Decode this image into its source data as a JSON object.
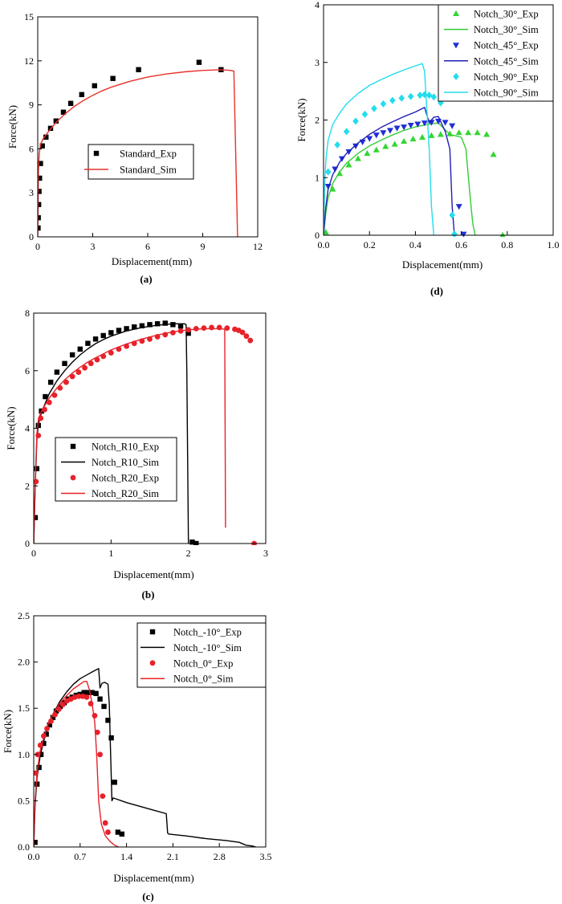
{
  "chart_data": [
    {
      "panel": "(a)",
      "type": "line",
      "xlabel": "Displacement(mm)",
      "ylabel": "Force(kN)",
      "xlim": [
        0,
        12
      ],
      "ylim": [
        0,
        15
      ],
      "xticks": [
        0,
        3,
        6,
        9,
        12
      ],
      "yticks": [
        0,
        3,
        6,
        9,
        12,
        15
      ],
      "xtick_labels": [
        "0",
        "3",
        "6",
        "9",
        "12"
      ],
      "ytick_labels": [
        "0",
        "3",
        "6",
        "9",
        "12",
        "15"
      ],
      "legend_position": "middle-right",
      "series": [
        {
          "name": "Standard_Exp",
          "kind": "scatter",
          "marker": "square",
          "color": "#000000",
          "x": [
            0.02,
            0.03,
            0.05,
            0.07,
            0.1,
            0.15,
            0.25,
            0.45,
            0.7,
            1.0,
            1.4,
            1.8,
            2.4,
            3.1,
            4.1,
            5.5,
            8.8,
            10.0
          ],
          "y": [
            0.6,
            1.3,
            2.2,
            3.1,
            4.0,
            5.0,
            6.2,
            6.8,
            7.4,
            7.9,
            8.5,
            9.1,
            9.7,
            10.3,
            10.8,
            11.4,
            11.9,
            11.4
          ]
        },
        {
          "name": "Standard_Sim",
          "kind": "line",
          "color": "#e8312a",
          "x": [
            0,
            0.04,
            0.08,
            0.15,
            0.3,
            0.6,
            1.0,
            1.5,
            2.0,
            2.5,
            3.0,
            3.5,
            4.0,
            5.0,
            6.0,
            7.0,
            8.0,
            9.0,
            10.0,
            10.5,
            10.7,
            10.9
          ],
          "y": [
            0,
            4.5,
            5.6,
            6.3,
            6.7,
            7.2,
            7.8,
            8.4,
            8.9,
            9.3,
            9.65,
            9.95,
            10.2,
            10.6,
            10.9,
            11.1,
            11.25,
            11.35,
            11.4,
            11.35,
            11.3,
            0
          ]
        }
      ]
    },
    {
      "panel": "(d)",
      "type": "line",
      "xlabel": "Displacement(mm)",
      "ylabel": "Force(kN)",
      "xlim": [
        0,
        1.0
      ],
      "ylim": [
        0,
        4
      ],
      "xticks": [
        0,
        0.2,
        0.4,
        0.6,
        0.8,
        1.0
      ],
      "yticks": [
        0,
        1,
        2,
        3,
        4
      ],
      "xtick_labels": [
        "0.0",
        "0.2",
        "0.4",
        "0.6",
        "0.8",
        "1.0"
      ],
      "ytick_labels": [
        "0",
        "1",
        "2",
        "3",
        "4"
      ],
      "legend_position": "top-right",
      "series": [
        {
          "name": "Notch_30°_Exp",
          "kind": "scatter",
          "marker": "triangle-up",
          "color": "#33d633",
          "x": [
            0.01,
            0.04,
            0.07,
            0.11,
            0.15,
            0.19,
            0.23,
            0.27,
            0.31,
            0.35,
            0.39,
            0.43,
            0.47,
            0.51,
            0.55,
            0.59,
            0.63,
            0.67,
            0.71,
            0.74,
            0.78
          ],
          "y": [
            0.05,
            0.8,
            1.07,
            1.22,
            1.33,
            1.42,
            1.48,
            1.54,
            1.58,
            1.63,
            1.67,
            1.7,
            1.73,
            1.75,
            1.76,
            1.78,
            1.78,
            1.78,
            1.75,
            1.4,
            0.0
          ]
        },
        {
          "name": "Notch_30°_Sim",
          "kind": "line",
          "color": "#33cc33",
          "x": [
            0,
            0.01,
            0.02,
            0.04,
            0.07,
            0.1,
            0.15,
            0.2,
            0.25,
            0.3,
            0.35,
            0.4,
            0.45,
            0.5,
            0.55,
            0.6,
            0.62,
            0.64,
            0.65,
            0.66
          ],
          "y": [
            0,
            0.4,
            0.65,
            0.9,
            1.1,
            1.25,
            1.42,
            1.55,
            1.65,
            1.74,
            1.82,
            1.88,
            1.92,
            1.95,
            1.75,
            1.7,
            1.5,
            0.6,
            0.2,
            0
          ]
        },
        {
          "name": "Notch_45°_Exp",
          "kind": "scatter",
          "marker": "triangle-down",
          "color": "#1f2fd6",
          "x": [
            0.02,
            0.05,
            0.08,
            0.11,
            0.14,
            0.17,
            0.2,
            0.23,
            0.26,
            0.29,
            0.32,
            0.35,
            0.38,
            0.41,
            0.44,
            0.47,
            0.5,
            0.53,
            0.56,
            0.59,
            0.61
          ],
          "y": [
            0.85,
            1.15,
            1.33,
            1.45,
            1.55,
            1.62,
            1.68,
            1.74,
            1.78,
            1.82,
            1.86,
            1.88,
            1.91,
            1.93,
            1.95,
            1.96,
            1.98,
            1.96,
            1.9,
            0.5,
            0.02
          ]
        },
        {
          "name": "Notch_45°_Sim",
          "kind": "line",
          "color": "#1f1fb4",
          "x": [
            0,
            0.01,
            0.02,
            0.04,
            0.07,
            0.1,
            0.15,
            0.2,
            0.25,
            0.3,
            0.35,
            0.4,
            0.44,
            0.46,
            0.48,
            0.5,
            0.53,
            0.55,
            0.56,
            0.57
          ],
          "y": [
            0,
            0.5,
            0.8,
            1.05,
            1.27,
            1.42,
            1.6,
            1.75,
            1.87,
            1.97,
            2.06,
            2.14,
            2.22,
            1.95,
            2.05,
            2.06,
            1.8,
            1.5,
            0.5,
            0
          ]
        },
        {
          "name": "Notch_90°_Exp",
          "kind": "scatter",
          "marker": "diamond",
          "color": "#22ddee",
          "x": [
            0.02,
            0.06,
            0.1,
            0.14,
            0.18,
            0.22,
            0.26,
            0.3,
            0.34,
            0.38,
            0.42,
            0.44,
            0.46,
            0.48,
            0.51,
            0.56,
            0.57
          ],
          "y": [
            1.1,
            1.57,
            1.8,
            1.98,
            2.1,
            2.2,
            2.28,
            2.34,
            2.38,
            2.41,
            2.43,
            2.44,
            2.43,
            2.4,
            2.3,
            0.35,
            0.02
          ]
        },
        {
          "name": "Notch_90°_Sim",
          "kind": "line",
          "color": "#22ddee",
          "x": [
            0,
            0.005,
            0.01,
            0.02,
            0.04,
            0.07,
            0.1,
            0.15,
            0.2,
            0.25,
            0.3,
            0.35,
            0.4,
            0.43,
            0.44,
            0.46,
            0.47,
            0.48
          ],
          "y": [
            0,
            0.9,
            1.3,
            1.65,
            1.92,
            2.12,
            2.28,
            2.46,
            2.6,
            2.7,
            2.79,
            2.87,
            2.94,
            2.98,
            2.85,
            1.5,
            0.5,
            0
          ]
        }
      ]
    },
    {
      "panel": "(b)",
      "type": "line",
      "xlabel": "Displacement(mm)",
      "ylabel": "Force(kN)",
      "xlim": [
        0,
        3
      ],
      "ylim": [
        0,
        8
      ],
      "xticks": [
        0,
        1,
        2,
        3
      ],
      "yticks": [
        0,
        2,
        4,
        6,
        8
      ],
      "xtick_labels": [
        "0",
        "1",
        "2",
        "3"
      ],
      "ytick_labels": [
        "0",
        "2",
        "4",
        "6",
        "8"
      ],
      "legend_position": "bottom-left",
      "series": [
        {
          "name": "Notch_R10_Exp",
          "kind": "scatter",
          "marker": "square",
          "color": "#000000",
          "x": [
            0.02,
            0.04,
            0.06,
            0.1,
            0.15,
            0.22,
            0.3,
            0.4,
            0.5,
            0.6,
            0.7,
            0.8,
            0.9,
            1.0,
            1.1,
            1.2,
            1.3,
            1.4,
            1.5,
            1.6,
            1.7,
            1.8,
            1.9,
            2.0,
            2.05,
            2.1
          ],
          "y": [
            0.9,
            2.6,
            4.1,
            4.6,
            5.1,
            5.6,
            5.95,
            6.25,
            6.55,
            6.75,
            6.95,
            7.1,
            7.22,
            7.32,
            7.4,
            7.46,
            7.52,
            7.56,
            7.6,
            7.63,
            7.65,
            7.6,
            7.55,
            7.3,
            0.05,
            0.0
          ]
        },
        {
          "name": "Notch_R10_Sim",
          "kind": "line",
          "color": "#000000",
          "x": [
            0,
            0.02,
            0.04,
            0.06,
            0.1,
            0.2,
            0.3,
            0.4,
            0.5,
            0.6,
            0.7,
            0.8,
            0.9,
            1.0,
            1.2,
            1.4,
            1.6,
            1.8,
            1.95,
            1.97,
            1.98,
            1.99,
            2.0
          ],
          "y": [
            0,
            2.0,
            3.6,
            4.15,
            4.55,
            5.2,
            5.65,
            6.0,
            6.3,
            6.55,
            6.76,
            6.94,
            7.08,
            7.2,
            7.38,
            7.5,
            7.58,
            7.63,
            7.63,
            7.6,
            6.0,
            3.0,
            0
          ]
        },
        {
          "name": "Notch_R20_Exp",
          "kind": "scatter",
          "marker": "circle",
          "color": "#e8212a",
          "x": [
            0.03,
            0.06,
            0.09,
            0.14,
            0.2,
            0.27,
            0.34,
            0.42,
            0.5,
            0.58,
            0.66,
            0.74,
            0.82,
            0.9,
            1.0,
            1.1,
            1.2,
            1.3,
            1.4,
            1.5,
            1.6,
            1.7,
            1.8,
            1.9,
            2.0,
            2.1,
            2.2,
            2.3,
            2.4,
            2.5,
            2.6,
            2.65,
            2.7,
            2.75,
            2.8,
            2.85
          ],
          "y": [
            2.15,
            3.75,
            4.35,
            4.65,
            4.9,
            5.15,
            5.4,
            5.6,
            5.8,
            5.95,
            6.1,
            6.25,
            6.38,
            6.5,
            6.62,
            6.75,
            6.85,
            6.95,
            7.03,
            7.1,
            7.18,
            7.25,
            7.32,
            7.38,
            7.42,
            7.46,
            7.48,
            7.5,
            7.5,
            7.48,
            7.44,
            7.4,
            7.33,
            7.2,
            7.05,
            0.0
          ]
        },
        {
          "name": "Notch_R20_Sim",
          "kind": "line",
          "color": "#e8212a",
          "x": [
            0,
            0.02,
            0.04,
            0.06,
            0.1,
            0.2,
            0.3,
            0.4,
            0.5,
            0.6,
            0.7,
            0.8,
            1.0,
            1.2,
            1.4,
            1.6,
            1.8,
            2.0,
            2.2,
            2.4,
            2.47,
            2.48
          ],
          "y": [
            0,
            2.1,
            3.8,
            4.3,
            4.6,
            5.05,
            5.4,
            5.68,
            5.92,
            6.12,
            6.3,
            6.45,
            6.72,
            6.93,
            7.1,
            7.24,
            7.35,
            7.42,
            7.46,
            7.46,
            7.44,
            0.55
          ]
        }
      ]
    },
    {
      "panel": "(c)",
      "type": "line",
      "xlabel": "Displacement(mm)",
      "ylabel": "Force(kN)",
      "xlim": [
        0,
        3.5
      ],
      "ylim": [
        0,
        2.5
      ],
      "xticks": [
        0,
        0.7,
        1.4,
        2.1,
        2.8,
        3.5
      ],
      "yticks": [
        0,
        0.5,
        1.0,
        1.5,
        2.0,
        2.5
      ],
      "xtick_labels": [
        "0.0",
        "0.7",
        "1.4",
        "2.1",
        "2.8",
        "3.5"
      ],
      "ytick_labels": [
        "0.0",
        "0.5",
        "1.0",
        "1.5",
        "2.0",
        "2.5"
      ],
      "legend_position": "top-right",
      "series": [
        {
          "name": "Notch_-10°_Exp",
          "kind": "scatter",
          "marker": "square",
          "color": "#000000",
          "x": [
            0.02,
            0.05,
            0.08,
            0.11,
            0.15,
            0.19,
            0.24,
            0.29,
            0.34,
            0.4,
            0.46,
            0.52,
            0.58,
            0.64,
            0.7,
            0.76,
            0.82,
            0.88,
            0.94,
            1.0,
            1.06,
            1.12,
            1.17,
            1.22,
            1.27,
            1.33
          ],
          "y": [
            0.05,
            0.68,
            0.86,
            1.0,
            1.12,
            1.22,
            1.32,
            1.4,
            1.47,
            1.52,
            1.56,
            1.6,
            1.62,
            1.64,
            1.65,
            1.67,
            1.67,
            1.67,
            1.66,
            1.6,
            1.52,
            1.37,
            1.18,
            0.7,
            0.16,
            0.14
          ]
        },
        {
          "name": "Notch_-10°_Sim",
          "kind": "line",
          "color": "#000000",
          "x": [
            0,
            0.02,
            0.05,
            0.1,
            0.2,
            0.3,
            0.4,
            0.5,
            0.6,
            0.7,
            0.8,
            0.9,
            0.98,
            1.0,
            1.03,
            1.07,
            1.12,
            1.14,
            1.16,
            1.18,
            1.2,
            1.4,
            1.6,
            1.8,
            2.0,
            2.02,
            2.04,
            2.3,
            2.6,
            2.9,
            3.1,
            3.2,
            3.3,
            3.35
          ],
          "y": [
            0,
            0.45,
            0.75,
            1.0,
            1.28,
            1.45,
            1.58,
            1.68,
            1.76,
            1.82,
            1.86,
            1.9,
            1.93,
            1.72,
            1.77,
            1.78,
            1.76,
            1.55,
            1.0,
            0.5,
            0.53,
            0.48,
            0.44,
            0.4,
            0.36,
            0.15,
            0.14,
            0.12,
            0.09,
            0.07,
            0.05,
            0.02,
            0.01,
            0
          ]
        },
        {
          "name": "Notch_0°_Exp",
          "kind": "scatter",
          "marker": "circle",
          "color": "#e8212a",
          "x": [
            0.03,
            0.06,
            0.1,
            0.15,
            0.2,
            0.26,
            0.32,
            0.38,
            0.44,
            0.5,
            0.56,
            0.62,
            0.68,
            0.74,
            0.8,
            0.86,
            0.92,
            0.96,
            1.0,
            1.04,
            1.08,
            1.12
          ],
          "y": [
            0.8,
            1.0,
            1.1,
            1.2,
            1.28,
            1.36,
            1.43,
            1.49,
            1.54,
            1.58,
            1.6,
            1.62,
            1.63,
            1.63,
            1.62,
            1.55,
            1.42,
            1.24,
            1.0,
            0.55,
            0.26,
            0.16
          ]
        },
        {
          "name": "Notch_0°_Sim",
          "kind": "line",
          "color": "#e8212a",
          "x": [
            0,
            0.02,
            0.05,
            0.1,
            0.2,
            0.3,
            0.4,
            0.5,
            0.6,
            0.7,
            0.76,
            0.8,
            0.84,
            0.88,
            0.92,
            0.95,
            0.98,
            1.02,
            1.08,
            1.15,
            1.22,
            1.28
          ],
          "y": [
            0,
            0.5,
            0.8,
            1.05,
            1.3,
            1.45,
            1.56,
            1.64,
            1.71,
            1.76,
            1.79,
            1.79,
            1.7,
            1.55,
            1.35,
            1.0,
            0.5,
            0.25,
            0.12,
            0.06,
            0.02,
            0
          ]
        }
      ]
    }
  ]
}
